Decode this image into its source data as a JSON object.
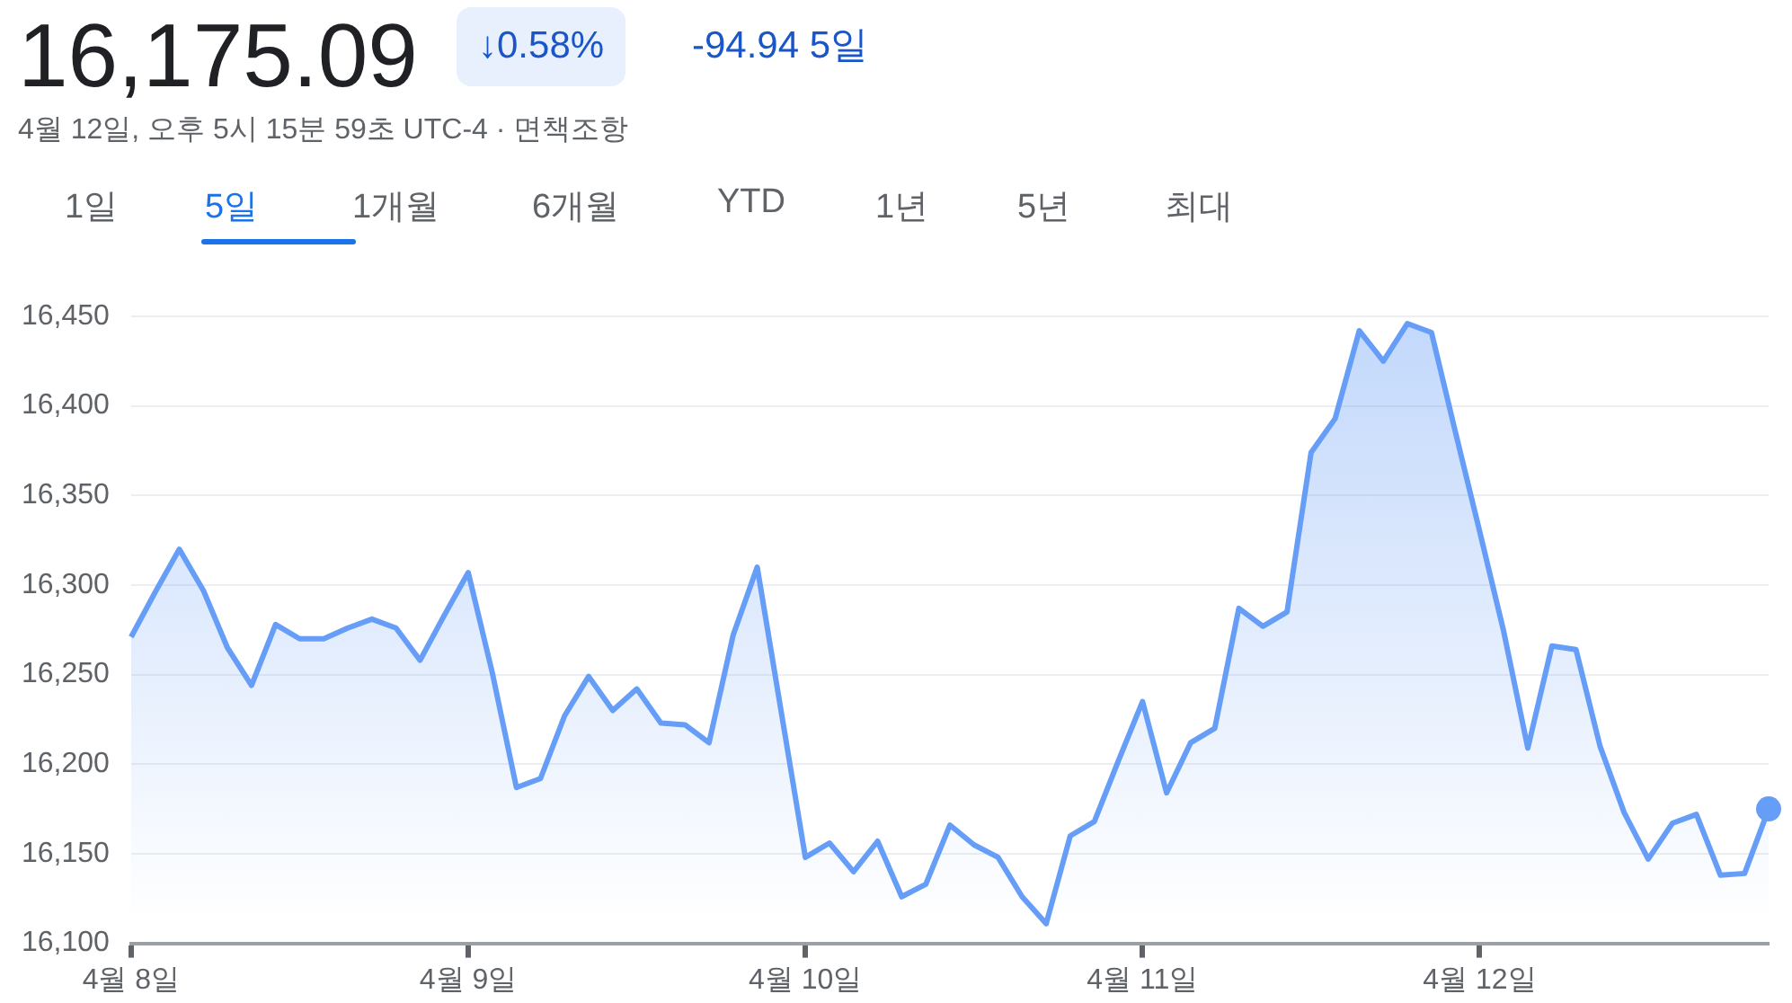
{
  "chart_data": {
    "type": "area",
    "title": "16,175.09",
    "subtitle": "↓0.58%",
    "annotations": [
      "-94.94 5일",
      "4월 12일, 오후 5시 15분 59초 UTC-4 · 면책조항",
      "1일",
      "5일",
      "1개월",
      "6개월",
      "YTD",
      "1년",
      "5년",
      "최대"
    ],
    "categories": [
      "4월 8일",
      null,
      null,
      null,
      null,
      null,
      null,
      null,
      null,
      null,
      null,
      null,
      null,
      null,
      "4월 9일",
      null,
      null,
      null,
      null,
      null,
      null,
      null,
      null,
      null,
      null,
      null,
      null,
      null,
      "4월 10일",
      null,
      null,
      null,
      null,
      null,
      null,
      null,
      null,
      null,
      null,
      null,
      null,
      null,
      "4월 11일",
      null,
      null,
      null,
      null,
      null,
      null,
      null,
      null,
      null,
      null,
      null,
      null,
      null,
      "4월 12일",
      null,
      null,
      null,
      null,
      null,
      null,
      null,
      null,
      null,
      null,
      null,
      null
    ],
    "series": [
      {
        "color": "#669df6",
        "values": [
          16271,
          16296,
          16320,
          16297,
          16265,
          16244,
          16278,
          16270,
          16270,
          16276,
          16281,
          16276,
          16258,
          16283,
          16307,
          16251,
          16187,
          16192,
          16227,
          16249,
          16230,
          16242,
          16223,
          16222,
          16212,
          16272,
          16310,
          16229,
          16148,
          16156,
          16140,
          16157,
          16126,
          16133,
          16166,
          16155,
          16148,
          16126,
          16111,
          16160,
          16168,
          16202,
          16235,
          16184,
          16212,
          16220,
          16287,
          16277,
          16285,
          16374,
          16393,
          16442,
          16425,
          16446,
          16441,
          16385,
          16330,
          16274,
          16209,
          16266,
          16264,
          16210,
          16173,
          16147,
          16167,
          16172,
          16138,
          16139,
          16175
        ]
      }
    ],
    "ylim": [
      16100,
      16450
    ],
    "yticks": [
      {
        "value": 16100,
        "label": "16,100"
      },
      {
        "value": 16150,
        "label": "16,150"
      },
      {
        "value": 16200,
        "label": "16,200"
      },
      {
        "value": 16250,
        "label": "16,250"
      },
      {
        "value": 16300,
        "label": "16,300"
      },
      {
        "value": 16350,
        "label": "16,350"
      },
      {
        "value": 16400,
        "label": "16,400"
      },
      {
        "value": 16450,
        "label": "16,450"
      }
    ],
    "grid": "y",
    "legend": false
  }
}
